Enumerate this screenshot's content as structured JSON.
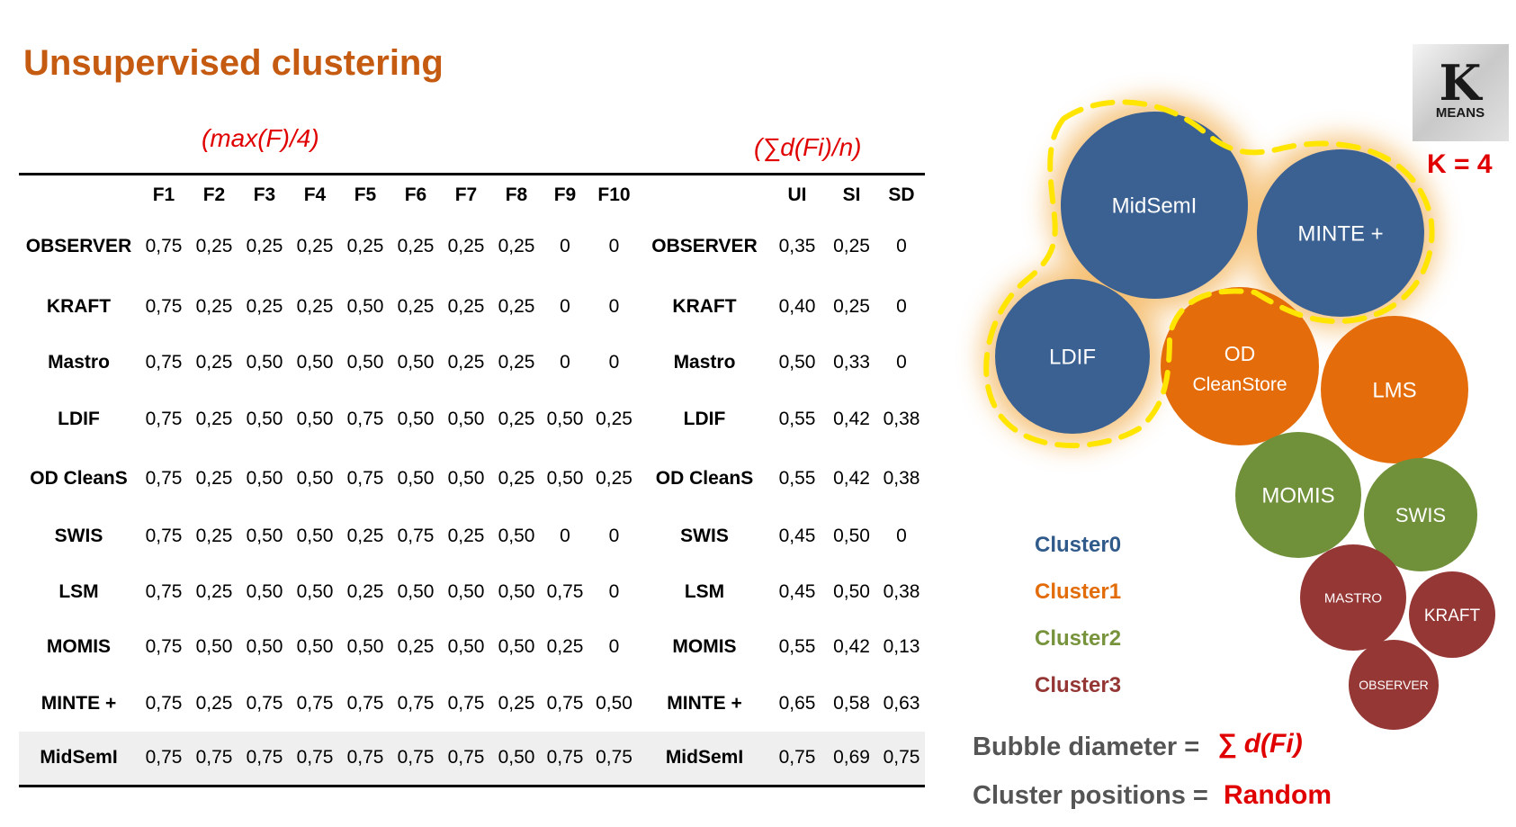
{
  "title": "Unsupervised clustering",
  "notes": {
    "left": "(max(F)/4)",
    "right": "(∑d(Fi)/n)"
  },
  "table": {
    "headers": [
      "",
      "F1",
      "F2",
      "F3",
      "F4",
      "F5",
      "F6",
      "F7",
      "F8",
      "F9",
      "F10",
      "",
      "UI",
      "SI",
      "SD"
    ],
    "rows": [
      {
        "name": "OBSERVER",
        "f": [
          "0,75",
          "0,25",
          "0,25",
          "0,25",
          "0,25",
          "0,25",
          "0,25",
          "0,25",
          "0",
          "0"
        ],
        "name2": "OBSERVER",
        "m": [
          "0,35",
          "0,25",
          "0"
        ]
      },
      {
        "name": "KRAFT",
        "f": [
          "0,75",
          "0,25",
          "0,25",
          "0,25",
          "0,50",
          "0,25",
          "0,25",
          "0,25",
          "0",
          "0"
        ],
        "name2": "KRAFT",
        "m": [
          "0,40",
          "0,25",
          "0"
        ]
      },
      {
        "name": "Mastro",
        "f": [
          "0,75",
          "0,25",
          "0,50",
          "0,50",
          "0,50",
          "0,50",
          "0,25",
          "0,25",
          "0",
          "0"
        ],
        "name2": "Mastro",
        "m": [
          "0,50",
          "0,33",
          "0"
        ]
      },
      {
        "name": "LDIF",
        "f": [
          "0,75",
          "0,25",
          "0,50",
          "0,50",
          "0,75",
          "0,50",
          "0,50",
          "0,25",
          "0,50",
          "0,25"
        ],
        "name2": "LDIF",
        "m": [
          "0,55",
          "0,42",
          "0,38"
        ]
      },
      {
        "name": "OD CleanS",
        "f": [
          "0,75",
          "0,25",
          "0,50",
          "0,50",
          "0,75",
          "0,50",
          "0,50",
          "0,25",
          "0,50",
          "0,25"
        ],
        "name2": "OD CleanS",
        "m": [
          "0,55",
          "0,42",
          "0,38"
        ]
      },
      {
        "name": "SWIS",
        "f": [
          "0,75",
          "0,25",
          "0,50",
          "0,50",
          "0,25",
          "0,75",
          "0,25",
          "0,50",
          "0",
          "0"
        ],
        "name2": "SWIS",
        "m": [
          "0,45",
          "0,50",
          "0"
        ]
      },
      {
        "name": "LSM",
        "f": [
          "0,75",
          "0,25",
          "0,50",
          "0,50",
          "0,25",
          "0,50",
          "0,50",
          "0,50",
          "0,75",
          "0"
        ],
        "name2": "LSM",
        "m": [
          "0,45",
          "0,50",
          "0,38"
        ]
      },
      {
        "name": "MOMIS",
        "f": [
          "0,75",
          "0,50",
          "0,50",
          "0,50",
          "0,50",
          "0,25",
          "0,50",
          "0,50",
          "0,25",
          "0"
        ],
        "name2": "MOMIS",
        "m": [
          "0,55",
          "0,42",
          "0,13"
        ]
      },
      {
        "name": "MINTE +",
        "f": [
          "0,75",
          "0,25",
          "0,75",
          "0,75",
          "0,75",
          "0,75",
          "0,75",
          "0,25",
          "0,75",
          "0,50"
        ],
        "name2": "MINTE +",
        "m": [
          "0,65",
          "0,58",
          "0,63"
        ]
      },
      {
        "name": "MidSemI",
        "f": [
          "0,75",
          "0,75",
          "0,75",
          "0,75",
          "0,75",
          "0,75",
          "0,75",
          "0,50",
          "0,75",
          "0,75"
        ],
        "name2": "MidSemI",
        "m": [
          "0,75",
          "0,69",
          "0,75"
        ]
      }
    ]
  },
  "kmeans": {
    "logo_k": "K",
    "logo_word": "MEANS",
    "k_label": "K = 4"
  },
  "bubbles": [
    {
      "label": "MidSemI",
      "cluster": 0
    },
    {
      "label": "MINTE +",
      "cluster": 0
    },
    {
      "label": "LDIF",
      "cluster": 0
    },
    {
      "label": "OD",
      "label2": "CleanStore",
      "cluster": 1
    },
    {
      "label": "LMS",
      "cluster": 1
    },
    {
      "label": "MOMIS",
      "cluster": 2
    },
    {
      "label": "SWIS",
      "cluster": 2
    },
    {
      "label": "MASTRO",
      "cluster": 3
    },
    {
      "label": "KRAFT",
      "cluster": 3
    },
    {
      "label": "OBSERVER",
      "cluster": 3
    }
  ],
  "legend": [
    {
      "label": "Cluster0",
      "color": "#2F5A8A"
    },
    {
      "label": "Cluster1",
      "color": "#E36C0A"
    },
    {
      "label": "Cluster2",
      "color": "#77933C"
    },
    {
      "label": "Cluster3",
      "color": "#943634"
    }
  ],
  "colors": {
    "cluster0": "#3B6193",
    "cluster1": "#E46C0A",
    "cluster2": "#70913A",
    "cluster3": "#953735",
    "highlight": "#FFE500"
  },
  "equations": [
    {
      "label": "Bubble diameter =",
      "value": "∑ d(Fi)"
    },
    {
      "label": "Cluster positions =",
      "value": "Random"
    }
  ]
}
